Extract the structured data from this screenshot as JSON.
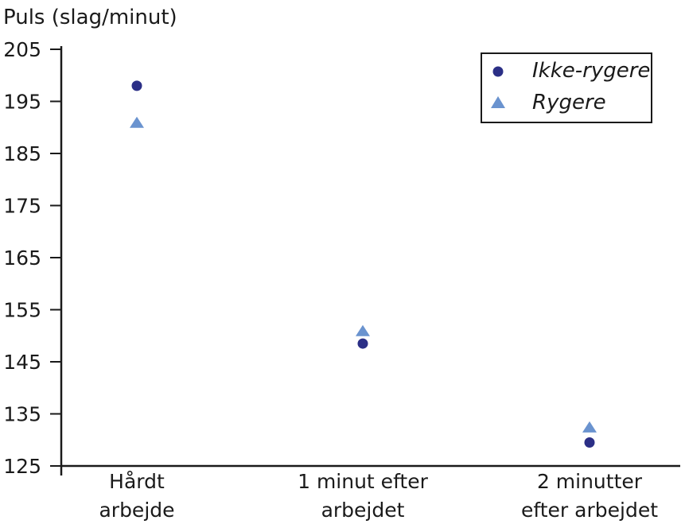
{
  "chart_data": {
    "type": "scatter",
    "ylabel": "Puls (slag/minut)",
    "ylim": [
      125,
      205
    ],
    "yticks": [
      125,
      135,
      145,
      155,
      165,
      175,
      185,
      195,
      205
    ],
    "categories": [
      [
        "Hårdt",
        "arbejde"
      ],
      [
        "1 minut efter",
        "arbejdet"
      ],
      [
        "2 minutter",
        "efter arbejdet"
      ]
    ],
    "series": [
      {
        "name": "Ikke-rygere",
        "marker": "circle",
        "color": "#2b2f86",
        "values": [
          198,
          148.5,
          129.5
        ]
      },
      {
        "name": "Rygere",
        "marker": "triangle",
        "color": "#6a93cf",
        "values": [
          191,
          151,
          132.5
        ]
      }
    ],
    "legend": "top-right",
    "grid": false
  }
}
